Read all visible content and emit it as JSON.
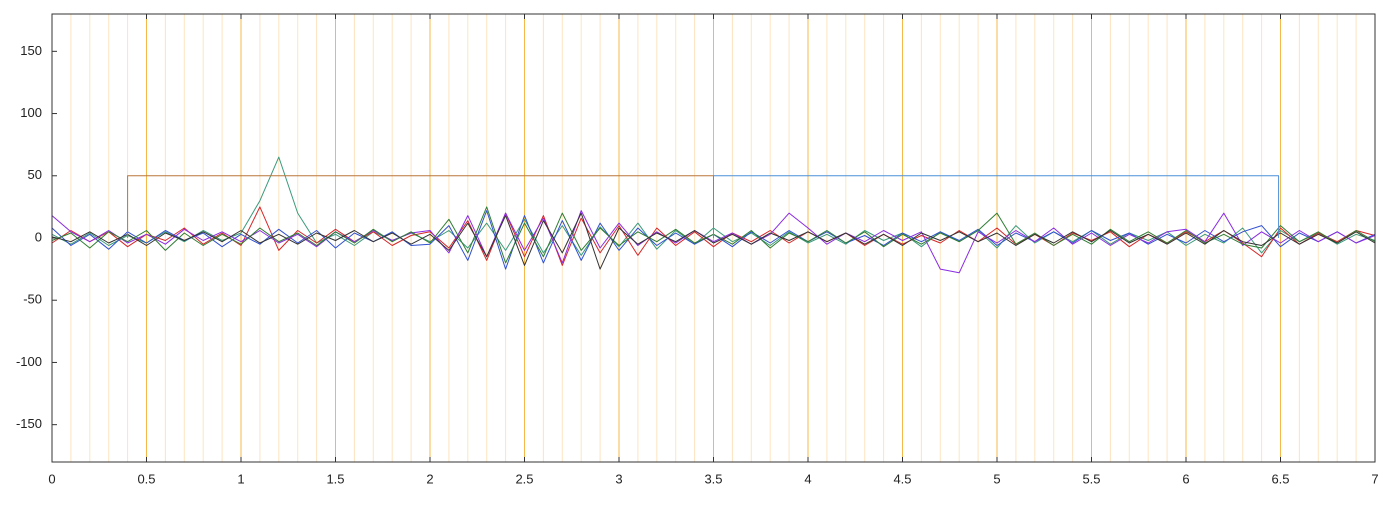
{
  "chart_data": {
    "type": "line",
    "x": [
      0,
      0.1,
      0.2,
      0.3,
      0.4,
      0.5,
      0.6,
      0.7,
      0.8,
      0.9,
      1,
      1.1,
      1.2,
      1.3,
      1.4,
      1.5,
      1.6,
      1.7,
      1.8,
      1.9,
      2,
      2.1,
      2.2,
      2.3,
      2.4,
      2.5,
      2.6,
      2.7,
      2.8,
      2.9,
      3,
      3.1,
      3.2,
      3.3,
      3.4,
      3.5,
      3.6,
      3.7,
      3.8,
      3.9,
      4,
      4.1,
      4.2,
      4.3,
      4.4,
      4.5,
      4.6,
      4.7,
      4.8,
      4.9,
      5,
      5.1,
      5.2,
      5.3,
      5.4,
      5.5,
      5.6,
      5.7,
      5.8,
      5.9,
      6,
      6.1,
      6.2,
      6.3,
      6.4,
      6.5,
      6.6,
      6.7,
      6.8,
      6.9,
      7
    ],
    "series": [
      {
        "color": "#3a9a7a",
        "values": [
          3,
          -5,
          4,
          -6,
          2,
          -4,
          5,
          -3,
          6,
          -2,
          4,
          30,
          65,
          20,
          -4,
          3,
          -6,
          5,
          -2,
          4,
          -3,
          6,
          -8,
          12,
          -10,
          15,
          -12,
          10,
          -14,
          9,
          -7,
          12,
          -9,
          6,
          -5,
          8,
          -3,
          4,
          -6,
          5,
          -4,
          3,
          -5,
          6,
          -2,
          4,
          -7,
          5,
          -3,
          6,
          -8,
          10,
          -4,
          5,
          -3,
          6,
          -5,
          4,
          -2,
          5,
          -6,
          3,
          -4,
          8,
          -12,
          6,
          -3,
          4,
          -5,
          3,
          -2
        ]
      },
      {
        "color": "#d62728",
        "values": [
          -4,
          6,
          -3,
          5,
          -7,
          3,
          -2,
          8,
          -5,
          4,
          -6,
          25,
          -10,
          6,
          -4,
          7,
          -3,
          5,
          -6,
          2,
          5,
          -8,
          14,
          -18,
          20,
          -15,
          18,
          -22,
          16,
          -12,
          10,
          -14,
          8,
          -6,
          5,
          -7,
          4,
          -3,
          6,
          -4,
          5,
          -3,
          4,
          -6,
          3,
          -5,
          2,
          -4,
          6,
          -3,
          8,
          -5,
          3,
          -6,
          4,
          -2,
          5,
          -7,
          3,
          -4,
          5,
          -3,
          6,
          -4,
          -15,
          8,
          -5,
          4,
          -3,
          6,
          2
        ]
      },
      {
        "color": "#3050d0",
        "values": [
          8,
          -6,
          3,
          -9,
          5,
          -4,
          6,
          -2,
          4,
          -7,
          3,
          -5,
          7,
          -4,
          6,
          -8,
          4,
          -3,
          5,
          -6,
          -5,
          10,
          -18,
          22,
          -25,
          18,
          -20,
          14,
          -18,
          12,
          -10,
          8,
          -6,
          4,
          -5,
          3,
          -7,
          5,
          -4,
          6,
          -3,
          5,
          -4,
          2,
          -6,
          4,
          -3,
          5,
          -2,
          7,
          -6,
          4,
          -3,
          5,
          -4,
          6,
          -2,
          4,
          -5,
          3,
          -4,
          6,
          -3,
          5,
          10,
          -7,
          4,
          -3,
          5,
          -4,
          3
        ]
      },
      {
        "color": "#8a2be2",
        "values": [
          18,
          5,
          -3,
          6,
          -4,
          3,
          -5,
          7,
          -2,
          5,
          -3,
          6,
          -4,
          3,
          -7,
          5,
          -3,
          6,
          -2,
          4,
          6,
          -12,
          18,
          -15,
          20,
          -10,
          16,
          -20,
          22,
          -8,
          12,
          -6,
          5,
          -4,
          6,
          -3,
          4,
          -5,
          3,
          20,
          8,
          -5,
          4,
          -3,
          6,
          -2,
          5,
          -25,
          -28,
          5,
          -4,
          6,
          -3,
          8,
          -5,
          4,
          -6,
          3,
          -4,
          5,
          7,
          -3,
          20,
          -6,
          5,
          -4,
          6,
          -3,
          5,
          -4,
          2
        ]
      },
      {
        "color": "#2e7d32",
        "values": [
          -2,
          4,
          -8,
          5,
          -3,
          6,
          -10,
          4,
          -6,
          3,
          -5,
          8,
          -3,
          4,
          -6,
          5,
          -4,
          7,
          -3,
          5,
          -4,
          15,
          -12,
          25,
          -20,
          12,
          -15,
          20,
          -10,
          8,
          -6,
          5,
          -3,
          7,
          -4,
          3,
          -5,
          6,
          -8,
          4,
          -3,
          6,
          -4,
          5,
          -7,
          3,
          -5,
          4,
          -3,
          6,
          20,
          -5,
          4,
          -6,
          3,
          -5,
          7,
          -3,
          5,
          -4,
          6,
          -4,
          3,
          -5,
          -8,
          10,
          -3,
          5,
          -4,
          6,
          -3
        ]
      },
      {
        "color": "#333333",
        "values": [
          1,
          -3,
          5,
          -4,
          3,
          -6,
          4,
          -2,
          5,
          -3,
          6,
          -4,
          3,
          -5,
          4,
          -2,
          6,
          -3,
          4,
          -5,
          3,
          -10,
          12,
          -15,
          18,
          -22,
          14,
          -12,
          20,
          -25,
          8,
          -5,
          4,
          -3,
          6,
          -4,
          3,
          -5,
          4,
          -2,
          5,
          -3,
          4,
          -5,
          3,
          -6,
          4,
          -2,
          5,
          -3,
          4,
          -6,
          3,
          -4,
          5,
          -3,
          6,
          -4,
          3,
          -5,
          4,
          -5,
          6,
          -3,
          -6,
          4,
          -5,
          3,
          -4,
          5,
          -4
        ]
      },
      {
        "color": "#b8763a",
        "x": [
          0.4,
          0.4,
          3.5,
          3.5
        ],
        "values": [
          0,
          50,
          50,
          0
        ]
      },
      {
        "color": "#4a90d9",
        "x": [
          3.5,
          3.5,
          6.49,
          6.49
        ],
        "values": [
          0,
          50,
          50,
          0
        ]
      }
    ],
    "xlim": [
      0,
      7
    ],
    "xticks": [
      0,
      0.5,
      1,
      1.5,
      2,
      2.5,
      3,
      3.5,
      4,
      4.5,
      5,
      5.5,
      6,
      6.5,
      7
    ],
    "xminorticks": [
      0.1,
      0.2,
      0.3,
      0.4,
      0.6,
      0.7,
      0.8,
      0.9,
      1.1,
      1.2,
      1.3,
      1.4,
      1.6,
      1.7,
      1.8,
      1.9,
      2.1,
      2.2,
      2.3,
      2.4,
      2.6,
      2.7,
      2.8,
      2.9,
      3.1,
      3.2,
      3.3,
      3.4,
      3.6,
      3.7,
      3.8,
      3.9,
      4.1,
      4.2,
      4.3,
      4.4,
      4.6,
      4.7,
      4.8,
      4.9,
      5.1,
      5.2,
      5.3,
      5.4,
      5.6,
      5.7,
      5.8,
      5.9,
      6.1,
      6.2,
      6.3,
      6.4,
      6.6,
      6.7,
      6.8,
      6.9
    ],
    "ylim": [
      -180,
      180
    ],
    "yticks": [
      -150,
      -100,
      -50,
      0,
      50,
      100,
      150
    ],
    "grid": true,
    "grid_color": "#f5b84a",
    "minor_grid_color": "#fde4c0"
  }
}
